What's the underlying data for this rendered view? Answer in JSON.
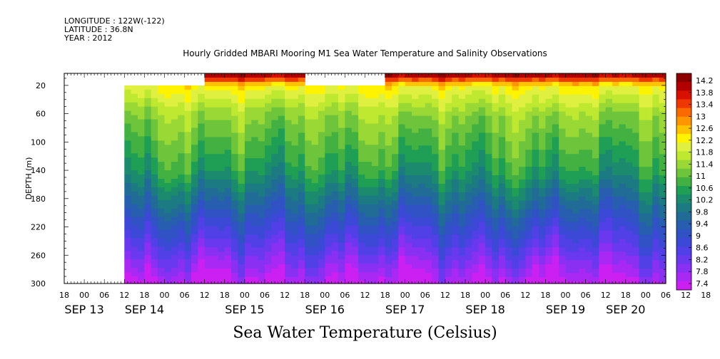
{
  "header": {
    "longitude": "LONGITUDE : 122W(-122)",
    "latitude": "LATITUDE : 36.8N",
    "year": "YEAR : 2012"
  },
  "chart_data": {
    "type": "heatmap",
    "title": "Hourly Gridded MBARI Mooring M1 Sea Water Temperature and Salinity Observations",
    "xlabel": "Sea Water Temperature (Celsius)",
    "ylabel": "DEPTH (m)",
    "y_ticks": [
      20,
      60,
      100,
      140,
      180,
      220,
      260,
      300
    ],
    "ylim": [
      300,
      3
    ],
    "x_hour_ticks": [
      "18",
      "00",
      "06",
      "12",
      "18",
      "00",
      "06",
      "12",
      "18",
      "00",
      "06",
      "12",
      "18",
      "00",
      "06",
      "12",
      "18",
      "00",
      "06",
      "12",
      "18",
      "00",
      "06",
      "12",
      "18",
      "00",
      "06",
      "12",
      "18",
      "00",
      "06",
      "12",
      "18",
      "00",
      "06",
      "12"
    ],
    "x_date_labels": [
      {
        "label": "SEP 13",
        "hour": -12
      },
      {
        "label": "SEP 14",
        "hour": 6
      },
      {
        "label": "SEP 15",
        "hour": 36
      },
      {
        "label": "SEP 16",
        "hour": 60
      },
      {
        "label": "SEP 17",
        "hour": 84
      },
      {
        "label": "SEP 18",
        "hour": 108
      },
      {
        "label": "SEP 19",
        "hour": 132
      },
      {
        "label": "SEP 20",
        "hour": 150
      }
    ],
    "x_range_hours": [
      -18,
      162
    ],
    "data_segments": [
      {
        "start": 0,
        "end": 24,
        "top_depth": 20
      },
      {
        "start": 24,
        "end": 54,
        "top_depth": 3
      },
      {
        "start": 54,
        "end": 78,
        "top_depth": 20
      },
      {
        "start": 78,
        "end": 162,
        "top_depth": 3
      }
    ],
    "colorbar": {
      "labels": [
        "14.2",
        "13.8",
        "13.4",
        "13",
        "12.6",
        "12.2",
        "11.8",
        "11.4",
        "11",
        "10.6",
        "10.2",
        "9.8",
        "9.4",
        "9",
        "8.6",
        "8.2",
        "7.8",
        "7.4"
      ],
      "colors": [
        "#8b0000",
        "#b20000",
        "#d81000",
        "#ef3800",
        "#fa6a00",
        "#ff9500",
        "#ffc300",
        "#fff300",
        "#e0f040",
        "#bfe830",
        "#99d835",
        "#6ec43a",
        "#42b142",
        "#1f9f55",
        "#1b8a6d",
        "#1c7a83",
        "#216c97",
        "#285eaf",
        "#3052c4",
        "#3c48d6",
        "#5040e6",
        "#6a38ee",
        "#8a30f2",
        "#aa28f4",
        "#cc20f2"
      ]
    }
  }
}
